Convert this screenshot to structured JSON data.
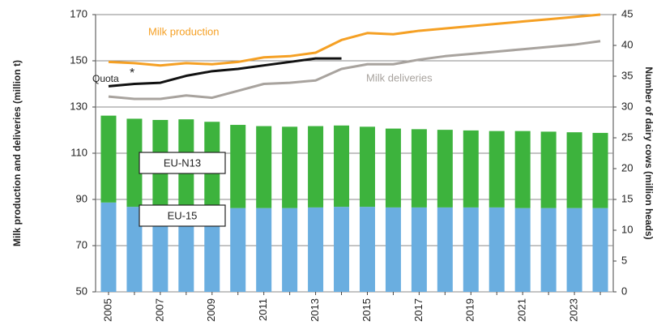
{
  "chart_data": {
    "type": "combo",
    "y_label": "Milk production and deliveries (million t)",
    "y2_label": "Number of dairy cows (million heads)",
    "categories": [
      "2005",
      null,
      "2007",
      null,
      "2009",
      null,
      "2011",
      null,
      "2013",
      null,
      "2015",
      null,
      "2017",
      null,
      "2019",
      null,
      "2021",
      null,
      "2023",
      null
    ],
    "ylim": [
      50,
      170
    ],
    "yticks": [
      50,
      70,
      90,
      110,
      130,
      150,
      170
    ],
    "y2lim": [
      0,
      45
    ],
    "y2ticks": [
      0,
      5,
      10,
      15,
      20,
      25,
      30,
      35,
      40,
      45
    ],
    "grid": true,
    "series": [
      {
        "name": "EU-15",
        "type": "bar",
        "axis": "y2",
        "color": "#6aaee0",
        "values": [
          14.5,
          13.8,
          13.8,
          13.9,
          13.8,
          13.6,
          13.6,
          13.6,
          13.7,
          13.8,
          13.8,
          13.7,
          13.7,
          13.7,
          13.7,
          13.7,
          13.6,
          13.6,
          13.6,
          13.6
        ]
      },
      {
        "name": "EU-N13",
        "type": "bar",
        "axis": "y2",
        "color": "#3db33d",
        "values": [
          14.1,
          14.3,
          14.1,
          14.1,
          13.8,
          13.5,
          13.3,
          13.2,
          13.2,
          13.2,
          13.0,
          12.8,
          12.7,
          12.6,
          12.5,
          12.4,
          12.5,
          12.4,
          12.3,
          12.2
        ]
      },
      {
        "name": "Milk production",
        "type": "line",
        "color": "#f5a024",
        "values": [
          149.5,
          149,
          148,
          149,
          148.5,
          149.5,
          151.5,
          152,
          153.5,
          159,
          162,
          161.5,
          163,
          164,
          165,
          166,
          167,
          168,
          169,
          170
        ]
      },
      {
        "name": "Milk deliveries",
        "type": "line",
        "color": "#a8a39e",
        "values": [
          134.5,
          133.5,
          133.5,
          135,
          134,
          137,
          140,
          140.5,
          141.5,
          146.5,
          148.5,
          148.5,
          150.5,
          152,
          153,
          154,
          155,
          156,
          157,
          158.5
        ]
      },
      {
        "name": "Quota",
        "type": "line",
        "color": "#111111",
        "values": [
          139,
          140,
          140.5,
          143.5,
          145.5,
          146.5,
          148,
          149.5,
          151,
          151,
          null,
          null,
          null,
          null,
          null,
          null,
          null,
          null,
          null,
          null
        ]
      }
    ],
    "annotation": "*"
  }
}
